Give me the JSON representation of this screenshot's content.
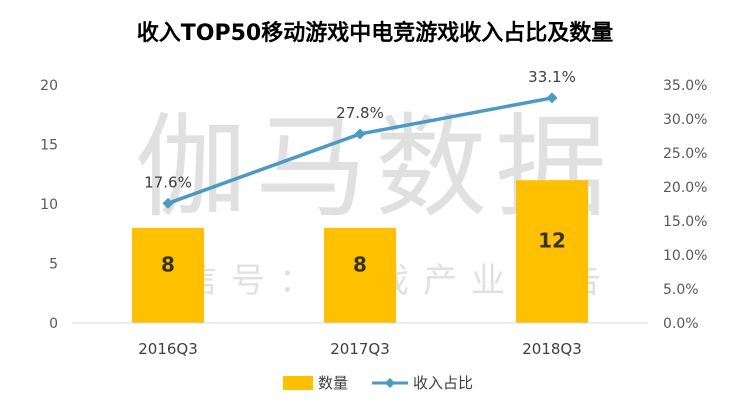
{
  "chart_data": {
    "type": "bar",
    "title": "收入TOP50移动游戏中电竞游戏收入占比及数量",
    "categories": [
      "2016Q3",
      "2017Q3",
      "2018Q3"
    ],
    "series": [
      {
        "name": "数量",
        "type": "bar",
        "axis": "left",
        "color": "#FFC000",
        "values": [
          8,
          8,
          12
        ],
        "labels": [
          "8",
          "8",
          "12"
        ]
      },
      {
        "name": "收入占比",
        "type": "line",
        "axis": "right",
        "color": "#4A9AC3",
        "values": [
          17.6,
          27.8,
          33.1
        ],
        "labels": [
          "17.6%",
          "27.8%",
          "33.1%"
        ]
      }
    ],
    "y_left": {
      "min": 0,
      "max": 20,
      "ticks": [
        "0",
        "5",
        "10",
        "15",
        "20"
      ]
    },
    "y_right": {
      "min": 0,
      "max": 35,
      "ticks": [
        "0.0%",
        "5.0%",
        "10.0%",
        "15.0%",
        "20.0%",
        "25.0%",
        "30.0%",
        "35.0%"
      ]
    },
    "grid": false,
    "legend_position": "bottom"
  },
  "watermark": {
    "main": "伽马数据",
    "sub": "微信号：游戏产业报告"
  }
}
